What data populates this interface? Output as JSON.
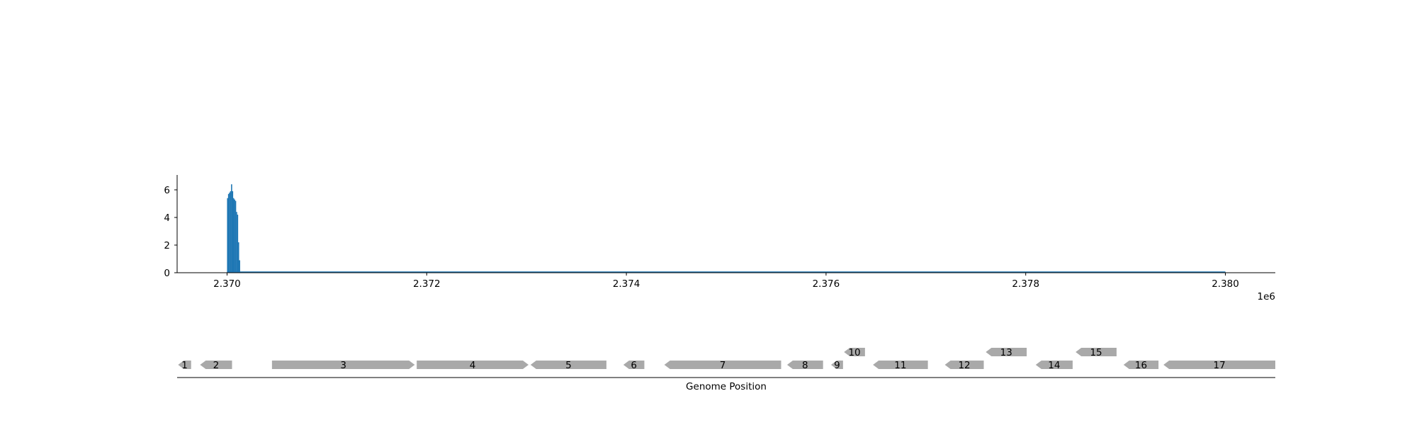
{
  "chart_data": [
    {
      "type": "bar",
      "title": "",
      "xlabel": "",
      "ylabel": "",
      "xlim": [
        2369500,
        2380500
      ],
      "ylim": [
        0,
        7
      ],
      "x_ticks": [
        2370000,
        2372000,
        2374000,
        2376000,
        2378000,
        2380000
      ],
      "x_tick_labels": [
        "2.370",
        "2.372",
        "2.374",
        "2.376",
        "2.378",
        "2.380"
      ],
      "x_offset_label": "1e6",
      "y_ticks": [
        0,
        2,
        4,
        6
      ],
      "y_tick_labels": [
        "0",
        "2",
        "4",
        "6"
      ],
      "grid": false,
      "color": "#1f77b4",
      "baseline": {
        "x_start": 2370000,
        "x_end": 2380000,
        "y": 0
      },
      "bars": [
        {
          "x": 2370000,
          "y": 5.4
        },
        {
          "x": 2370010,
          "y": 5.7
        },
        {
          "x": 2370020,
          "y": 5.8
        },
        {
          "x": 2370030,
          "y": 5.9
        },
        {
          "x": 2370040,
          "y": 6.4
        },
        {
          "x": 2370050,
          "y": 5.9
        },
        {
          "x": 2370060,
          "y": 5.4
        },
        {
          "x": 2370070,
          "y": 5.3
        },
        {
          "x": 2370080,
          "y": 5.2
        },
        {
          "x": 2370090,
          "y": 4.4
        },
        {
          "x": 2370100,
          "y": 4.2
        },
        {
          "x": 2370110,
          "y": 2.2
        },
        {
          "x": 2370120,
          "y": 0.9
        }
      ]
    },
    {
      "type": "gene_track",
      "xlabel": "Genome Position",
      "xlim": [
        2369500,
        2380500
      ],
      "color": "#a9a9a9",
      "genes": [
        {
          "label": "1",
          "start": 2369510,
          "end": 2369640,
          "strand": "-",
          "row": 0
        },
        {
          "label": "2",
          "start": 2369730,
          "end": 2370050,
          "strand": "-",
          "row": 0
        },
        {
          "label": "3",
          "start": 2370450,
          "end": 2371880,
          "strand": "+",
          "row": 0
        },
        {
          "label": "4",
          "start": 2371900,
          "end": 2373020,
          "strand": "+",
          "row": 0
        },
        {
          "label": "5",
          "start": 2373040,
          "end": 2373800,
          "strand": "-",
          "row": 0
        },
        {
          "label": "6",
          "start": 2373970,
          "end": 2374180,
          "strand": "-",
          "row": 0
        },
        {
          "label": "7",
          "start": 2374380,
          "end": 2375550,
          "strand": "-",
          "row": 0
        },
        {
          "label": "8",
          "start": 2375610,
          "end": 2375970,
          "strand": "-",
          "row": 0
        },
        {
          "label": "9",
          "start": 2376050,
          "end": 2376170,
          "strand": "-",
          "row": 0
        },
        {
          "label": "10",
          "start": 2376180,
          "end": 2376390,
          "strand": "-",
          "row": 1
        },
        {
          "label": "11",
          "start": 2376470,
          "end": 2377020,
          "strand": "-",
          "row": 0
        },
        {
          "label": "12",
          "start": 2377190,
          "end": 2377580,
          "strand": "-",
          "row": 0
        },
        {
          "label": "13",
          "start": 2377600,
          "end": 2378010,
          "strand": "-",
          "row": 1
        },
        {
          "label": "14",
          "start": 2378100,
          "end": 2378470,
          "strand": "-",
          "row": 0
        },
        {
          "label": "15",
          "start": 2378500,
          "end": 2378910,
          "strand": "-",
          "row": 1
        },
        {
          "label": "16",
          "start": 2378980,
          "end": 2379330,
          "strand": "-",
          "row": 0
        },
        {
          "label": "17",
          "start": 2379380,
          "end": 2380500,
          "strand": "-",
          "row": 0
        }
      ]
    }
  ]
}
